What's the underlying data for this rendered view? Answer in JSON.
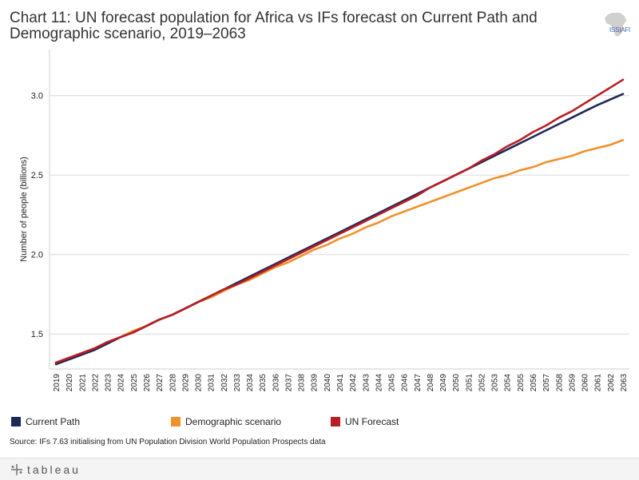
{
  "title": "Chart 11: UN forecast population for Africa vs IFs forecast on Current Path and Demographic scenario, 2019–2063",
  "logo": {
    "text_left": "ISS",
    "text_sep": "|",
    "text_right": "AFI"
  },
  "source": "Source: IFs 7.63 initialising from UN Population Division World Population Prospects data",
  "footer": {
    "brand": "+tableau",
    "icon": "tableau-plus-icon"
  },
  "colors": {
    "current_path": "#1d2857",
    "demographic": "#f0912c",
    "un_forecast": "#b71f24",
    "grid": "#d9d9d9"
  },
  "chart_data": {
    "type": "line",
    "ylabel": "Number of people (billions)",
    "xlabel": "",
    "ylim": [
      1.28,
      3.29
    ],
    "yticks": [
      1.5,
      2.0,
      2.5,
      3.0
    ],
    "ytick_labels": [
      "1.5",
      "2.0",
      "2.5",
      "3.0"
    ],
    "x": [
      2019,
      2020,
      2021,
      2022,
      2023,
      2024,
      2025,
      2026,
      2027,
      2028,
      2029,
      2030,
      2031,
      2032,
      2033,
      2034,
      2035,
      2036,
      2037,
      2038,
      2039,
      2040,
      2041,
      2042,
      2043,
      2044,
      2045,
      2046,
      2047,
      2048,
      2049,
      2050,
      2051,
      2052,
      2053,
      2054,
      2055,
      2056,
      2057,
      2058,
      2059,
      2060,
      2061,
      2062,
      2063
    ],
    "grid": true,
    "legend_position": "bottom",
    "series": [
      {
        "name": "Current Path",
        "color": "#1d2857",
        "values": [
          1.31,
          1.34,
          1.37,
          1.4,
          1.44,
          1.48,
          1.51,
          1.55,
          1.59,
          1.62,
          1.66,
          1.7,
          1.74,
          1.78,
          1.82,
          1.86,
          1.9,
          1.94,
          1.98,
          2.02,
          2.06,
          2.1,
          2.14,
          2.18,
          2.22,
          2.26,
          2.3,
          2.34,
          2.38,
          2.42,
          2.46,
          2.5,
          2.54,
          2.58,
          2.62,
          2.66,
          2.7,
          2.74,
          2.78,
          2.82,
          2.86,
          2.9,
          2.94,
          2.975,
          3.01
        ]
      },
      {
        "name": "Demographic scenario",
        "color": "#f0912c",
        "values": [
          1.32,
          1.35,
          1.38,
          1.41,
          1.45,
          1.48,
          1.52,
          1.55,
          1.59,
          1.62,
          1.66,
          1.7,
          1.73,
          1.77,
          1.81,
          1.84,
          1.88,
          1.92,
          1.95,
          1.99,
          2.03,
          2.06,
          2.1,
          2.13,
          2.17,
          2.2,
          2.24,
          2.27,
          2.3,
          2.33,
          2.36,
          2.39,
          2.42,
          2.45,
          2.48,
          2.5,
          2.53,
          2.55,
          2.58,
          2.6,
          2.62,
          2.65,
          2.67,
          2.69,
          2.72
        ]
      },
      {
        "name": "UN Forecast",
        "color": "#b71f24",
        "values": [
          1.32,
          1.35,
          1.38,
          1.41,
          1.45,
          1.48,
          1.51,
          1.55,
          1.59,
          1.62,
          1.66,
          1.7,
          1.74,
          1.78,
          1.81,
          1.85,
          1.89,
          1.93,
          1.97,
          2.01,
          2.05,
          2.09,
          2.13,
          2.17,
          2.21,
          2.25,
          2.29,
          2.33,
          2.37,
          2.42,
          2.46,
          2.5,
          2.54,
          2.59,
          2.63,
          2.68,
          2.72,
          2.77,
          2.81,
          2.86,
          2.9,
          2.95,
          3.0,
          3.05,
          3.1
        ]
      }
    ]
  }
}
